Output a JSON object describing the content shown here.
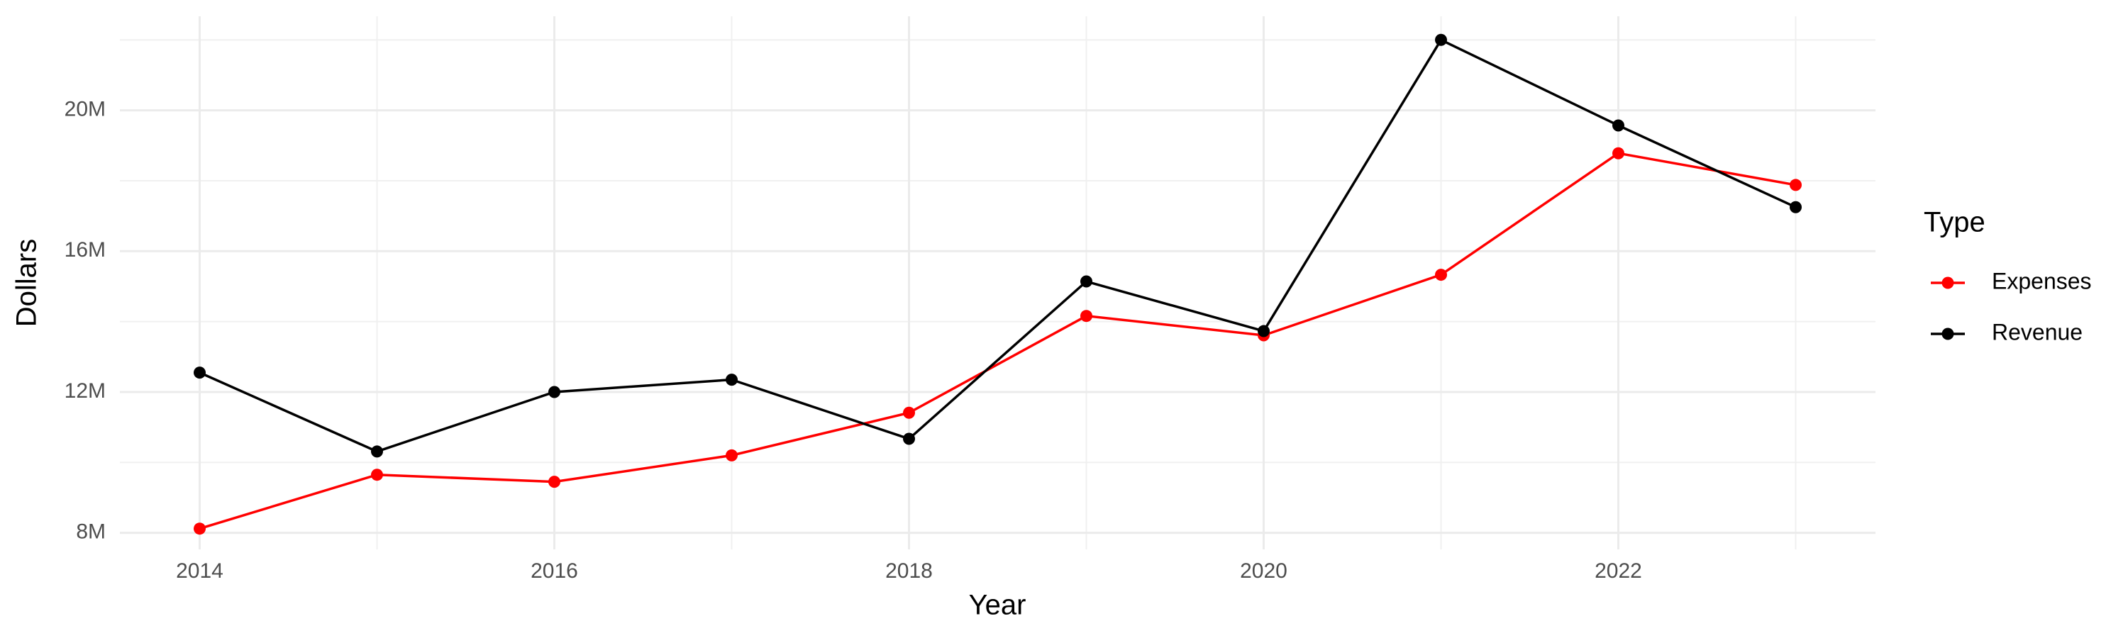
{
  "chart_data": {
    "type": "line",
    "x_label": "Year",
    "y_label": "Dollars",
    "legend_title": "Type",
    "legend_position": "right",
    "grid": true,
    "x": [
      2014,
      2015,
      2016,
      2017,
      2018,
      2019,
      2020,
      2021,
      2022,
      2023
    ],
    "xlim": [
      2013.55,
      2023.45
    ],
    "xticks": [
      2014,
      2016,
      2018,
      2020,
      2022
    ],
    "ylim": [
      7530000,
      22670000
    ],
    "yticks": [
      {
        "value": 8000000,
        "label": "8M"
      },
      {
        "value": 12000000,
        "label": "12M"
      },
      {
        "value": 16000000,
        "label": "16M"
      },
      {
        "value": 20000000,
        "label": "20M"
      }
    ],
    "series": [
      {
        "name": "Expenses",
        "color": "#ff0000",
        "values": [
          8120000,
          9650000,
          9450000,
          10200000,
          11410000,
          14160000,
          13610000,
          15330000,
          18780000,
          17880000
        ]
      },
      {
        "name": "Revenue",
        "color": "#000000",
        "values": [
          12550000,
          10310000,
          12000000,
          12350000,
          10670000,
          15140000,
          13730000,
          22000000,
          19570000,
          17250000
        ]
      }
    ]
  }
}
